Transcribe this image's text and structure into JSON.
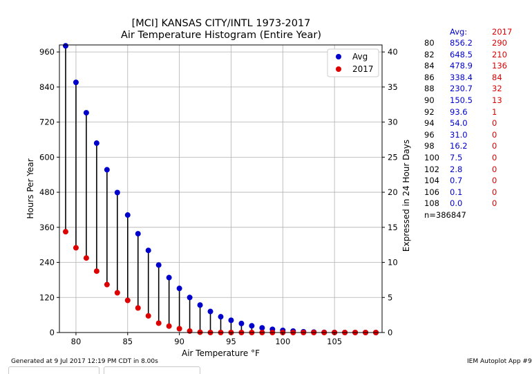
{
  "chart_data": {
    "type": "scatter",
    "title": "[MCI] KANSAS CITY/INTL 1973-2017",
    "subtitle": "Air Temperature Histogram (Entire Year)",
    "xlabel": "Air Temperature $^\\circ$F",
    "xlabel_display": "Air Temperature °F",
    "ylabel": "Hours Per Year",
    "ylabel_right": "Expressed in 24 Hour Days",
    "xlim": [
      78.4,
      109.6
    ],
    "ylim": [
      0,
      984
    ],
    "ylim_right": [
      0,
      41
    ],
    "x_ticks": [
      80,
      85,
      90,
      95,
      100,
      105
    ],
    "y_ticks": [
      0,
      120,
      240,
      360,
      480,
      600,
      720,
      840,
      960
    ],
    "y_ticks_right": [
      0,
      5,
      10,
      15,
      20,
      25,
      30,
      35,
      40
    ],
    "grid": true,
    "legend_position": "top-right",
    "x": [
      79,
      80,
      81,
      82,
      83,
      84,
      85,
      86,
      87,
      88,
      89,
      90,
      91,
      92,
      93,
      94,
      95,
      96,
      97,
      98,
      99,
      100,
      101,
      102,
      103,
      104,
      105,
      106,
      107,
      108,
      109
    ],
    "series": [
      {
        "name": "Avg",
        "color": "#0000cc",
        "values": [
          981,
          856,
          752,
          648,
          557,
          479,
          402,
          338,
          281,
          231,
          188,
          151,
          120,
          94,
          72,
          54,
          42,
          31,
          23,
          16,
          11,
          7.5,
          5,
          2.8,
          1.6,
          0.7,
          0.4,
          0.1,
          0.05,
          0,
          0
        ]
      },
      {
        "name": "2017",
        "color": "#dd0000",
        "values": [
          345,
          290,
          255,
          210,
          164,
          136,
          110,
          84,
          57,
          32,
          22,
          13,
          5,
          1,
          0,
          0,
          0,
          0,
          0,
          0,
          0,
          0,
          0,
          0,
          0,
          0,
          0,
          0,
          0,
          0,
          0
        ]
      }
    ]
  },
  "table": {
    "header_avg": "Avg:",
    "header_year": "2017",
    "rows": [
      {
        "temp": "80",
        "avg": "856.2",
        "year": "290"
      },
      {
        "temp": "82",
        "avg": "648.5",
        "year": "210"
      },
      {
        "temp": "84",
        "avg": "478.9",
        "year": "136"
      },
      {
        "temp": "86",
        "avg": "338.4",
        "year": "84"
      },
      {
        "temp": "88",
        "avg": "230.7",
        "year": "32"
      },
      {
        "temp": "90",
        "avg": "150.5",
        "year": "13"
      },
      {
        "temp": "92",
        "avg": "93.6",
        "year": "1"
      },
      {
        "temp": "94",
        "avg": "54.0",
        "year": "0"
      },
      {
        "temp": "96",
        "avg": "31.0",
        "year": "0"
      },
      {
        "temp": "98",
        "avg": "16.2",
        "year": "0"
      },
      {
        "temp": "100",
        "avg": "7.5",
        "year": "0"
      },
      {
        "temp": "102",
        "avg": "2.8",
        "year": "0"
      },
      {
        "temp": "104",
        "avg": "0.7",
        "year": "0"
      },
      {
        "temp": "106",
        "avg": "0.1",
        "year": "0"
      },
      {
        "temp": "108",
        "avg": "0.0",
        "year": "0"
      }
    ],
    "count": "n=386847"
  },
  "footer": {
    "generated": "Generated at 9 Jul 2017 12:19 PM CDT in 8.00s",
    "app": "IEM Autoplot App #9"
  },
  "colors": {
    "avg": "#0000cc",
    "year": "#dd0000",
    "stem": "#000000",
    "grid": "#b0b0b0"
  }
}
